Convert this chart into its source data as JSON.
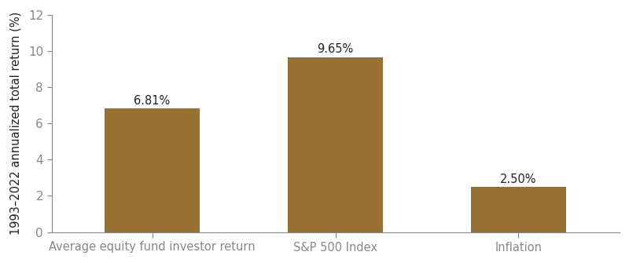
{
  "categories": [
    "Average equity fund investor return",
    "S&P 500 Index",
    "Inflation"
  ],
  "values": [
    6.81,
    9.65,
    2.5
  ],
  "bar_color": "#967132",
  "value_labels": [
    "6.81%",
    "9.65%",
    "2.50%"
  ],
  "ylabel": "1993–2022 annualized total return (%)",
  "ylim": [
    0,
    12
  ],
  "yticks": [
    0,
    2,
    4,
    6,
    8,
    10,
    12
  ],
  "bar_width": 0.52,
  "label_fontsize": 10.5,
  "ylabel_fontsize": 10.5,
  "tick_fontsize": 11,
  "value_label_fontsize": 10.5,
  "background_color": "#ffffff",
  "spine_color": "#888888",
  "text_color": "#222222"
}
